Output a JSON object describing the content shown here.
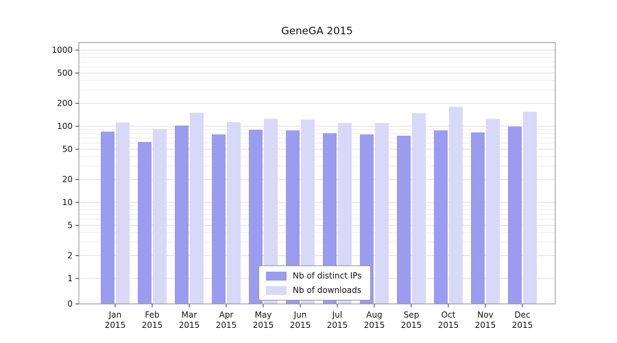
{
  "chart_data": {
    "type": "bar",
    "title": "GeneGA 2015",
    "categories": [
      "Jan",
      "Feb",
      "Mar",
      "Apr",
      "May",
      "Jun",
      "Jul",
      "Aug",
      "Sep",
      "Oct",
      "Nov",
      "Dec"
    ],
    "year_label": "2015",
    "series": [
      {
        "name": "Nb of distinct IPs",
        "color": "#9b9bef",
        "values": [
          85,
          62,
          102,
          78,
          90,
          88,
          81,
          78,
          75,
          88,
          83,
          99
        ]
      },
      {
        "name": "Nb of downloads",
        "color": "#d8d8f9",
        "values": [
          112,
          92,
          150,
          113,
          125,
          122,
          110,
          110,
          148,
          180,
          125,
          155
        ]
      }
    ],
    "yscale": "log-with-zero",
    "yticks": [
      0,
      1,
      2,
      5,
      10,
      20,
      50,
      100,
      200,
      500,
      1000
    ],
    "ylim": [
      0,
      1300
    ],
    "grid": "horizontal-minor",
    "legend_position": "bottom-center-inside",
    "axis_box_color": "#888888",
    "grid_minor_color": "#ececec",
    "grid_major_color": "#dedede",
    "tick_color": "#333333",
    "text_color": "#111111"
  }
}
